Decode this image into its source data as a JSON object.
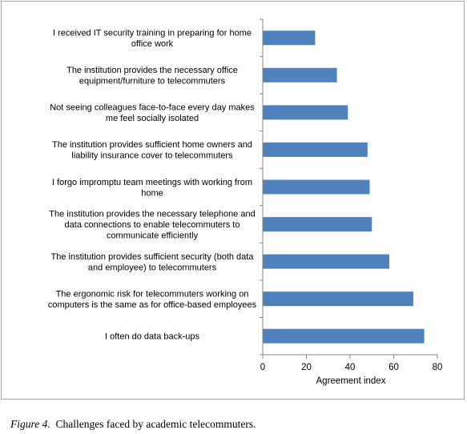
{
  "chart_data": {
    "type": "bar",
    "orientation": "horizontal",
    "categories": [
      [
        "I received IT security training in preparing for home",
        "office work"
      ],
      [
        "The institution provides the necessary office",
        "equipment/furniture to telecommuters"
      ],
      [
        "Not seeing colleagues face-to-face every day makes",
        "me feel socially isolated"
      ],
      [
        "The institution provides sufficient home owners and",
        "liability insurance cover to telecommuters"
      ],
      [
        "I forgo impromptu team meetings with working from",
        "home"
      ],
      [
        "The institution provides the necessary telephone and",
        "data connections to enable telecommuters to",
        "communicate efficiently"
      ],
      [
        "The institution provides sufficient security (both data",
        "and employee) to telecommuters"
      ],
      [
        "The ergonomic risk for telecommuters working on",
        "computers is the same as for office-based employees"
      ],
      [
        "I often do data back-ups"
      ]
    ],
    "values": [
      24,
      34,
      39,
      48,
      49,
      50,
      58,
      69,
      74
    ],
    "xlabel": "Agreement  index",
    "ylabel": "",
    "xlim": [
      0,
      80
    ],
    "xticks": [
      0,
      20,
      40,
      60,
      80
    ],
    "grid": false,
    "legend": "none",
    "bar_color": "#4f81bd"
  },
  "caption": {
    "figure_label": "Figure 4.",
    "text": "Challenges faced by academic telecommuters."
  }
}
